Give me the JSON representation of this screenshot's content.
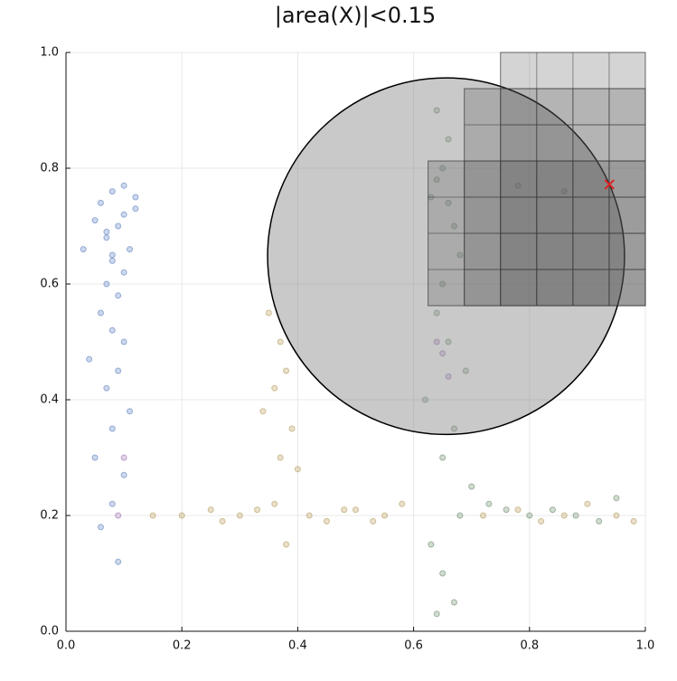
{
  "chart_data": {
    "type": "scatter",
    "title": "|area(X)|<0.15",
    "xlim": [
      0,
      1
    ],
    "ylim": [
      0,
      1
    ],
    "xticks": [
      {
        "value": 0,
        "label": "0.0"
      },
      0.2,
      0.4,
      0.6,
      0.8,
      {
        "value": 1,
        "label": "1.0"
      }
    ],
    "yticks": [
      {
        "value": 0,
        "label": "0.0"
      },
      0.2,
      0.4,
      0.6,
      0.8,
      {
        "value": 1,
        "label": "1.0"
      }
    ],
    "grid": true,
    "opacity": 0.3,
    "series": [
      {
        "color": "#5b7fbf",
        "x": [
          0.08,
          0.06,
          0.1,
          0.09,
          0.07,
          0.11,
          0.05,
          0.08,
          0.1,
          0.12,
          0.07,
          0.09,
          0.06,
          0.08,
          0.1,
          0.04,
          0.09,
          0.07,
          0.11,
          0.08,
          0.05,
          0.1,
          0.08,
          0.06,
          0.09,
          0.12,
          0.07,
          0.1,
          0.08,
          0.03
        ],
        "y": [
          0.76,
          0.74,
          0.72,
          0.7,
          0.68,
          0.66,
          0.71,
          0.64,
          0.62,
          0.75,
          0.6,
          0.58,
          0.55,
          0.52,
          0.5,
          0.47,
          0.45,
          0.42,
          0.38,
          0.35,
          0.3,
          0.27,
          0.22,
          0.18,
          0.12,
          0.73,
          0.69,
          0.77,
          0.65,
          0.66
        ]
      },
      {
        "color": "#b59b5a",
        "x": [
          0.35,
          0.37,
          0.38,
          0.36,
          0.34,
          0.39,
          0.37,
          0.4,
          0.36,
          0.38,
          0.2,
          0.25,
          0.3,
          0.45,
          0.5,
          0.55,
          0.58,
          0.72,
          0.78,
          0.82,
          0.86,
          0.9,
          0.95,
          0.98,
          0.15,
          0.27,
          0.33,
          0.42,
          0.48,
          0.53
        ],
        "y": [
          0.55,
          0.5,
          0.45,
          0.42,
          0.38,
          0.35,
          0.3,
          0.28,
          0.22,
          0.15,
          0.2,
          0.21,
          0.2,
          0.19,
          0.21,
          0.2,
          0.22,
          0.2,
          0.21,
          0.19,
          0.2,
          0.22,
          0.2,
          0.19,
          0.2,
          0.19,
          0.21,
          0.2,
          0.21,
          0.19
        ]
      },
      {
        "color": "#6b8a6b",
        "x": [
          0.64,
          0.66,
          0.65,
          0.63,
          0.67,
          0.68,
          0.65,
          0.64,
          0.66,
          0.69,
          0.62,
          0.67,
          0.65,
          0.7,
          0.73,
          0.76,
          0.8,
          0.84,
          0.88,
          0.92,
          0.95,
          0.78,
          0.86,
          0.64,
          0.66,
          0.68,
          0.63,
          0.65,
          0.67,
          0.64
        ],
        "y": [
          0.9,
          0.85,
          0.8,
          0.75,
          0.7,
          0.65,
          0.6,
          0.55,
          0.5,
          0.45,
          0.4,
          0.35,
          0.3,
          0.25,
          0.22,
          0.21,
          0.2,
          0.21,
          0.2,
          0.19,
          0.23,
          0.77,
          0.76,
          0.78,
          0.74,
          0.2,
          0.15,
          0.1,
          0.05,
          0.03
        ]
      },
      {
        "color": "#9a70b0",
        "x": [
          0.65,
          0.66,
          0.64,
          0.1,
          0.09
        ],
        "y": [
          0.48,
          0.44,
          0.5,
          0.3,
          0.2
        ]
      }
    ],
    "boxes": [
      {
        "xlim": [
          0.75,
          1.0
        ],
        "ylim": [
          0.5625,
          1.0
        ]
      },
      {
        "xlim": [
          0.6875,
          1.0
        ],
        "ylim": [
          0.5625,
          0.9375
        ]
      },
      {
        "xlim": [
          0.625,
          1.0
        ],
        "ylim": [
          0.5625,
          0.8125
        ]
      }
    ],
    "cell_size": 0.0625,
    "circle": {
      "center": [
        0.656,
        0.648
      ],
      "radius": 0.308
    },
    "marker": {
      "x": 0.938,
      "y": 0.772,
      "color": "#e02020"
    }
  }
}
